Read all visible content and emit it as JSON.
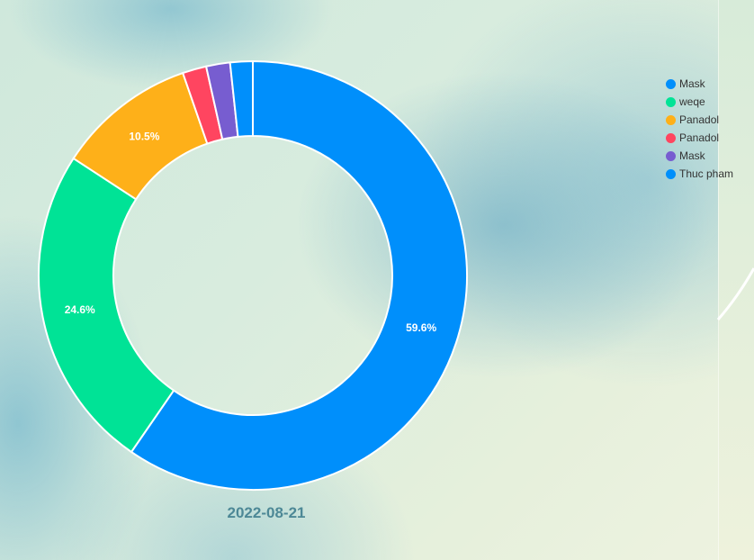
{
  "chart_data": {
    "type": "pie",
    "donut": true,
    "categories": [
      "Mask",
      "weqe",
      "Panadol",
      "Panadol",
      "Mask",
      "Thuc pham"
    ],
    "values": [
      59.6,
      24.6,
      10.5,
      1.8,
      1.8,
      1.7
    ],
    "colors": [
      "#008ffb",
      "#00e396",
      "#feb019",
      "#ff4560",
      "#775dd0",
      "#008ffb"
    ],
    "data_labels": [
      "59.6%",
      "24.6%",
      "10.5%",
      "",
      "",
      ""
    ],
    "legend": "top-right",
    "xlabel": "2022-08-21"
  }
}
